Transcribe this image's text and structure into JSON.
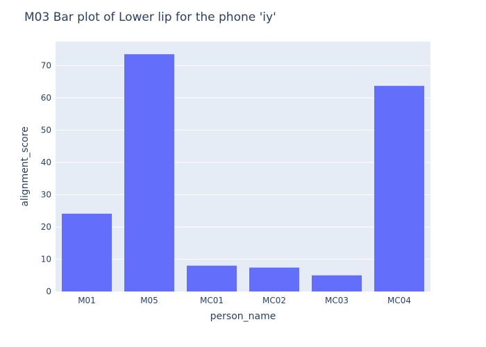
{
  "colors": {
    "bar": "#636efa",
    "plot_bg": "#e5ecf6",
    "grid": "#ffffff",
    "text": "#2a3f5f"
  },
  "chart_data": {
    "type": "bar",
    "title": "M03 Bar plot of Lower lip for the phone 'iy'",
    "xlabel": "person_name",
    "ylabel": "alignment_score",
    "categories": [
      "M01",
      "M05",
      "MC01",
      "MC02",
      "MC03",
      "MC04"
    ],
    "values": [
      24.1,
      73.5,
      8.0,
      7.4,
      5.0,
      63.7
    ],
    "ylim": [
      0,
      77.4
    ],
    "yticks": [
      0,
      10,
      20,
      30,
      40,
      50,
      60,
      70
    ],
    "grid": true,
    "legend": "none"
  }
}
